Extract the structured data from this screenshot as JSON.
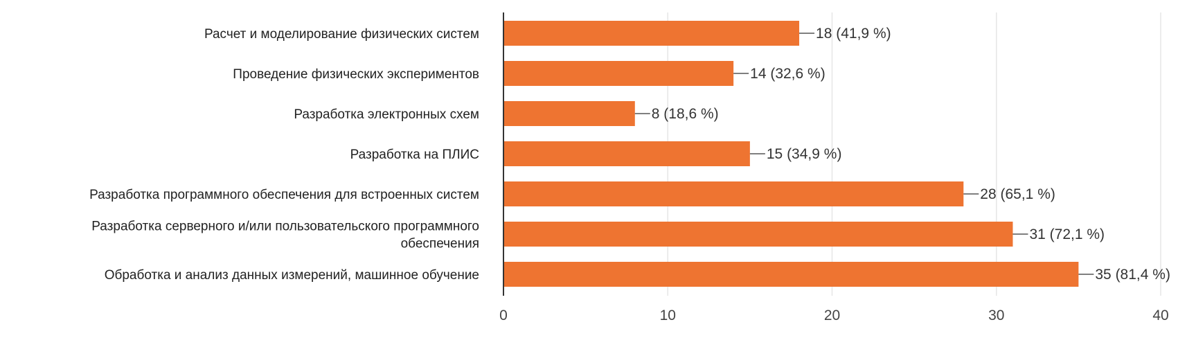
{
  "chart_data": {
    "type": "bar",
    "orientation": "horizontal",
    "categories": [
      [
        "Расчет и моделирование физических систем"
      ],
      [
        "Проведение физических экспериментов"
      ],
      [
        "Разработка электронных схем"
      ],
      [
        "Разработка на ПЛИС"
      ],
      [
        "Разработка программного обеспечения для встроенных систем"
      ],
      [
        "Разработка серверного и/или пользовательского программного",
        "обеспечения"
      ],
      [
        "Обработка и анализ данных измерений, машинное обучение"
      ]
    ],
    "values": [
      18,
      14,
      8,
      15,
      28,
      31,
      35
    ],
    "data_labels": [
      "18 (41,9 %)",
      "14 (32,6 %)",
      "8 (18,6 %)",
      "15 (34,9 %)",
      "28 (65,1 %)",
      "31 (72,1 %)",
      "35 (81,4 %)"
    ],
    "xlim": [
      0,
      40
    ],
    "xticks": [
      0,
      10,
      20,
      30,
      40
    ],
    "grid": true,
    "legend": "none",
    "colors": {
      "bar": "#ee7431",
      "grid": "#e6e6e6",
      "axis": "#333333",
      "leader": "#555555"
    }
  }
}
